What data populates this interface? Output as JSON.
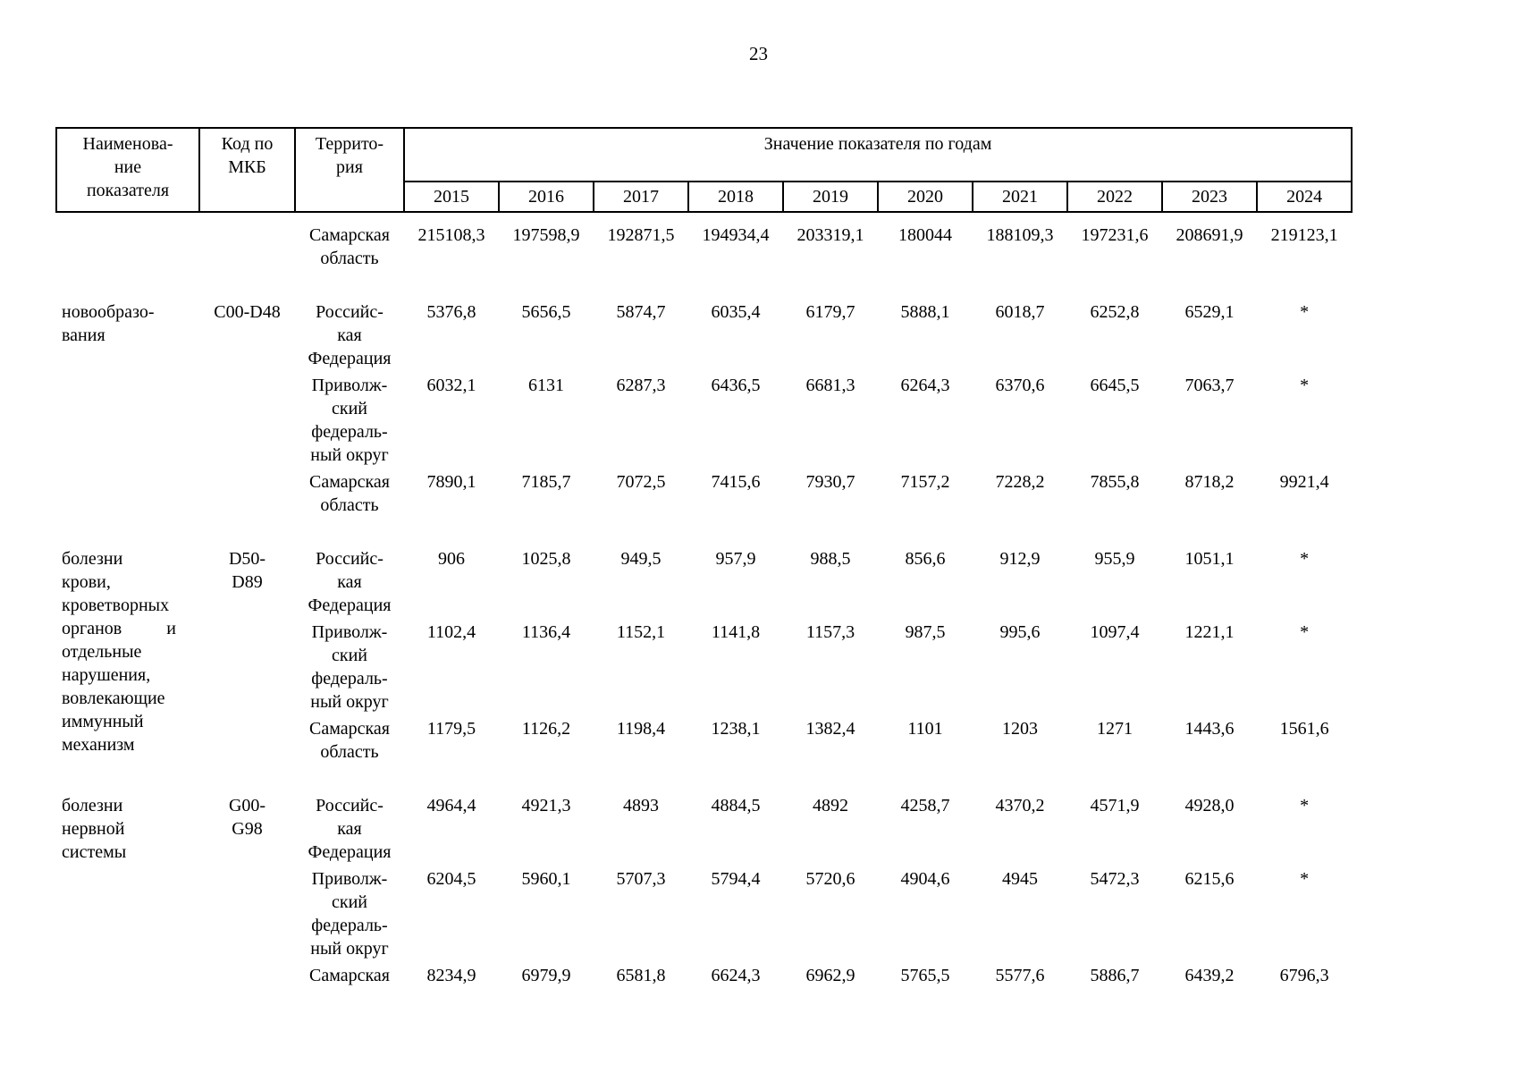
{
  "page": {
    "number": "23"
  },
  "table": {
    "headers": {
      "name": "Наименова-\nние\nпоказателя",
      "code": "Код по\nМКБ",
      "territory": "Террито-\nрия",
      "values_label": "Значение показателя по годам",
      "years": [
        "2015",
        "2016",
        "2017",
        "2018",
        "2019",
        "2020",
        "2021",
        "2022",
        "2023",
        "2024"
      ]
    },
    "rows": [
      {
        "name": "",
        "code": "",
        "rowspan": 1,
        "territory": "Самарская\nобласть",
        "values": [
          "215108,3",
          "197598,9",
          "192871,5",
          "194934,4",
          "203319,1",
          "180044",
          "188109,3",
          "197231,6",
          "208691,9",
          "219123,1"
        ],
        "section_end": true
      },
      {
        "name": "новообразо-\nвания",
        "code": "C00-D48",
        "rowspan": 3,
        "territory": "Российс-\nкая\nФедерация",
        "values": [
          "5376,8",
          "5656,5",
          "5874,7",
          "6035,4",
          "6179,7",
          "5888,1",
          "6018,7",
          "6252,8",
          "6529,1",
          "*"
        ]
      },
      {
        "territory": "Приволж-\nский\nфедераль-\nный округ",
        "values": [
          "6032,1",
          "6131",
          "6287,3",
          "6436,5",
          "6681,3",
          "6264,3",
          "6370,6",
          "6645,5",
          "7063,7",
          "*"
        ]
      },
      {
        "territory": "Самарская\nобласть",
        "values": [
          "7890,1",
          "7185,7",
          "7072,5",
          "7415,6",
          "7930,7",
          "7157,2",
          "7228,2",
          "7855,8",
          "8718,2",
          "9921,4"
        ],
        "section_end": true
      },
      {
        "name": "болезни\nкрови,\nкроветворных\nорганов          и\nотдельные\nнарушения,\nвовлекающие\nиммунный\nмеханизм",
        "code": "D50-\nD89",
        "rowspan": 3,
        "territory": "Российс-\nкая\nФедерация",
        "values": [
          "906",
          "1025,8",
          "949,5",
          "957,9",
          "988,5",
          "856,6",
          "912,9",
          "955,9",
          "1051,1",
          "*"
        ]
      },
      {
        "territory": "Приволж-\nский\nфедераль-\nный округ",
        "values": [
          "1102,4",
          "1136,4",
          "1152,1",
          "1141,8",
          "1157,3",
          "987,5",
          "995,6",
          "1097,4",
          "1221,1",
          "*"
        ]
      },
      {
        "territory": "Самарская\nобласть",
        "values": [
          "1179,5",
          "1126,2",
          "1198,4",
          "1238,1",
          "1382,4",
          "1101",
          "1203",
          "1271",
          "1443,6",
          "1561,6"
        ],
        "section_end": true
      },
      {
        "name": "болезни\nнервной\nсистемы",
        "code": "G00-\nG98",
        "rowspan": 3,
        "territory": "Российс-\nкая\nФедерация",
        "values": [
          "4964,4",
          "4921,3",
          "4893",
          "4884,5",
          "4892",
          "4258,7",
          "4370,2",
          "4571,9",
          "4928,0",
          "*"
        ]
      },
      {
        "territory": "Приволж-\nский\nфедераль-\nный округ",
        "values": [
          "6204,5",
          "5960,1",
          "5707,3",
          "5794,4",
          "5720,6",
          "4904,6",
          "4945",
          "5472,3",
          "6215,6",
          "*"
        ]
      },
      {
        "territory": "Самарская",
        "values": [
          "8234,9",
          "6979,9",
          "6581,8",
          "6624,3",
          "6962,9",
          "5765,5",
          "5577,6",
          "5886,7",
          "6439,2",
          "6796,3"
        ]
      }
    ]
  }
}
